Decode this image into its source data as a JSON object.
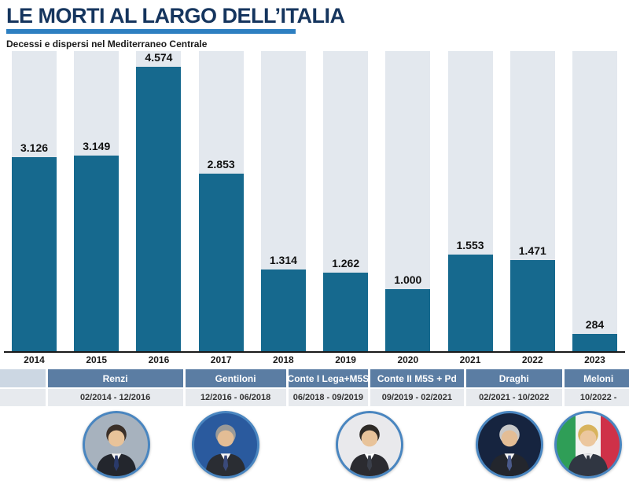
{
  "header": {
    "title": "LE MORTI AL LARGO DELL’ITALIA",
    "subtitle": "Decessi e dispersi nel Mediterraneo Centrale"
  },
  "chart_data": {
    "type": "bar",
    "title": "LE MORTI AL LARGO DELL’ITALIA",
    "subtitle": "Decessi e dispersi nel Mediterraneo Centrale",
    "categories": [
      "2014",
      "2015",
      "2016",
      "2017",
      "2018",
      "2019",
      "2020",
      "2021",
      "2022",
      "2023"
    ],
    "values": [
      3126,
      3149,
      4574,
      2853,
      1314,
      1262,
      1000,
      1553,
      1471,
      284
    ],
    "value_labels": [
      "3.126",
      "3.149",
      "4.574",
      "2.853",
      "1.314",
      "1.262",
      "1.000",
      "1.553",
      "1.471",
      "284"
    ],
    "ylim": [
      0,
      4800
    ],
    "grid": false,
    "legend": false,
    "bar_color": "#16698e",
    "column_bg_color": "#e3e8ee"
  },
  "governments": [
    {
      "name": "",
      "dates": "",
      "width_pct": 7.2
    },
    {
      "name": "Renzi",
      "dates": "02/2014 - 12/2016",
      "width_pct": 21.5
    },
    {
      "name": "Gentiloni",
      "dates": "12/2016 - 06/2018",
      "width_pct": 16.0
    },
    {
      "name": "Conte I Lega+M5S",
      "dates": "06/2018 - 09/2019",
      "width_pct": 12.7
    },
    {
      "name": "Conte II M5S + Pd",
      "dates": "09/2019 - 02/2021",
      "width_pct": 14.8
    },
    {
      "name": "Draghi",
      "dates": "02/2021 - 10/2022",
      "width_pct": 15.3
    },
    {
      "name": "Meloni",
      "dates": "10/2022 -",
      "width_pct": 10.8
    }
  ],
  "avatars": [
    {
      "name": "Renzi",
      "left_pct": 18.5,
      "bg": "#a7b2be",
      "hair": "#3a2f28",
      "skin": "#e8c39a",
      "suit": "#23262d",
      "shirt": "#f5f5f5",
      "tie": "#2a3a6a"
    },
    {
      "name": "Gentiloni",
      "left_pct": 35.9,
      "bg": "#2a5a9e",
      "hair": "#9a9a98",
      "skin": "#e3bd95",
      "suit": "#2a2d33",
      "shirt": "#f5f5f5",
      "tie": "#3a4a7a"
    },
    {
      "name": "Conte",
      "left_pct": 58.8,
      "bg": "#e9e9ec",
      "hair": "#2e2a26",
      "skin": "#e8c39a",
      "suit": "#2b2b30",
      "shirt": "#ffffff",
      "tie": "#3a3f4a"
    },
    {
      "name": "Draghi",
      "left_pct": 81.0,
      "bg": "#16243f",
      "hair": "#c8c8c8",
      "skin": "#e3bd95",
      "suit": "#23262d",
      "shirt": "#f5f5f5",
      "tie": "#4a5a8a"
    },
    {
      "name": "Meloni",
      "left_pct": 93.5,
      "bg": "linear-gradient(90deg,#2f9e57 0 30%,#f2f2f2 30% 70%,#cf3148 70% 100%)",
      "hair": "#d8b35c",
      "skin": "#ecc79e",
      "suit": "#303642",
      "shirt": "#e8e8ea",
      "tie": "#303642"
    }
  ],
  "colors": {
    "title_text": "#15355e",
    "title_underline": "#2d7fc1",
    "bar": "#16698e",
    "column_bg": "#e3e8ee",
    "band_bg": "#5b7da3",
    "band_lead_bg": "#ccd7e3",
    "date_bg": "#e7eaee",
    "avatar_ring": "#4a86c0",
    "axis": "#1a1a1a"
  }
}
